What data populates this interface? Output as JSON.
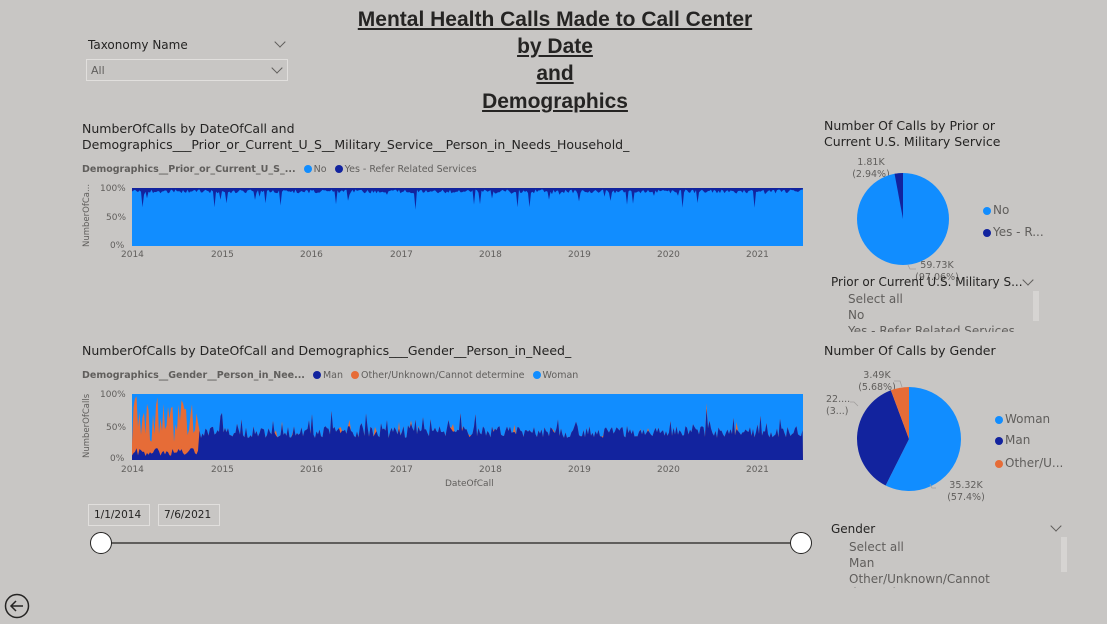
{
  "title": {
    "lines": [
      "Mental Health Calls Made to Call Center",
      "by Date",
      "and",
      "Demographics"
    ]
  },
  "taxonomy_slicer": {
    "label": "Taxonomy Name",
    "value": "All"
  },
  "military_chart": {
    "title_line1": "NumberOfCalls by DateOfCall and",
    "title_line2": "Demographics___Prior_or_Current_U_S__Military_Service__Person_in_Needs_Household_",
    "legend_title": "Demographics__Prior_or_Current_U_S_...",
    "legend_items": [
      {
        "label": "No",
        "color": "#118dff"
      },
      {
        "label": "Yes - Refer Related Services",
        "color": "#12239e"
      }
    ],
    "ytitle": "NumberOfCa...",
    "y_ticks": [
      "100%",
      "50%",
      "0%"
    ],
    "x_ticks": [
      "2014",
      "2015",
      "2016",
      "2017",
      "2018",
      "2019",
      "2020",
      "2021"
    ]
  },
  "gender_chart": {
    "title": "NumberOfCalls by DateOfCall and Demographics___Gender__Person_in_Need_",
    "legend_title": "Demographics__Gender__Person_in_Nee...",
    "legend_items": [
      {
        "label": "Man",
        "color": "#12239e"
      },
      {
        "label": "Other/Unknown/Cannot determine",
        "color": "#e66c37"
      },
      {
        "label": "Woman",
        "color": "#118dff"
      }
    ],
    "ytitle": "NumberOfCalls",
    "xtitle": "DateOfCall",
    "y_ticks": [
      "100%",
      "50%",
      "0%"
    ],
    "x_ticks": [
      "2014",
      "2015",
      "2016",
      "2017",
      "2018",
      "2019",
      "2020",
      "2021"
    ]
  },
  "military_pie": {
    "title_line1": "Number Of Calls by Prior or",
    "title_line2": "Current U.S. Military Service",
    "label_small_value": "1.81K",
    "label_small_pct": "(2.94%)",
    "label_large_value": "59.73K",
    "label_large_pct": "(97.06%)",
    "legend": [
      {
        "label": "No",
        "color": "#118dff"
      },
      {
        "label": "Yes - R...",
        "color": "#12239e"
      }
    ],
    "chart_data": {
      "type": "pie",
      "categories": [
        "No",
        "Yes - Refer Related Services"
      ],
      "values": [
        59730,
        1810
      ]
    }
  },
  "military_slicer": {
    "label": "Prior or Current U.S. Military S...",
    "items": [
      "Select all",
      "No",
      "Yes - Refer Related Services"
    ]
  },
  "gender_pie": {
    "title": "Number Of Calls by Gender",
    "label_other_value": "3.49K",
    "label_other_pct": "(5.68%)",
    "label_man_value": "22....",
    "label_man_pct": "(3...)",
    "label_woman_value": "35.32K",
    "label_woman_pct": "(57.4%)",
    "legend": [
      {
        "label": "Woman",
        "color": "#118dff"
      },
      {
        "label": "Man",
        "color": "#12239e"
      },
      {
        "label": "Other/U...",
        "color": "#e66c37"
      }
    ],
    "chart_data": {
      "type": "pie",
      "categories": [
        "Woman",
        "Man",
        "Other/Unknown/Cannot determine"
      ],
      "values": [
        35320,
        22700,
        3490
      ]
    }
  },
  "gender_slicer": {
    "label": "Gender",
    "items": [
      "Select all",
      "Man",
      "Other/Unknown/Cannot determine"
    ]
  },
  "date_slicer": {
    "start": "1/1/2014",
    "end": "7/6/2021"
  }
}
